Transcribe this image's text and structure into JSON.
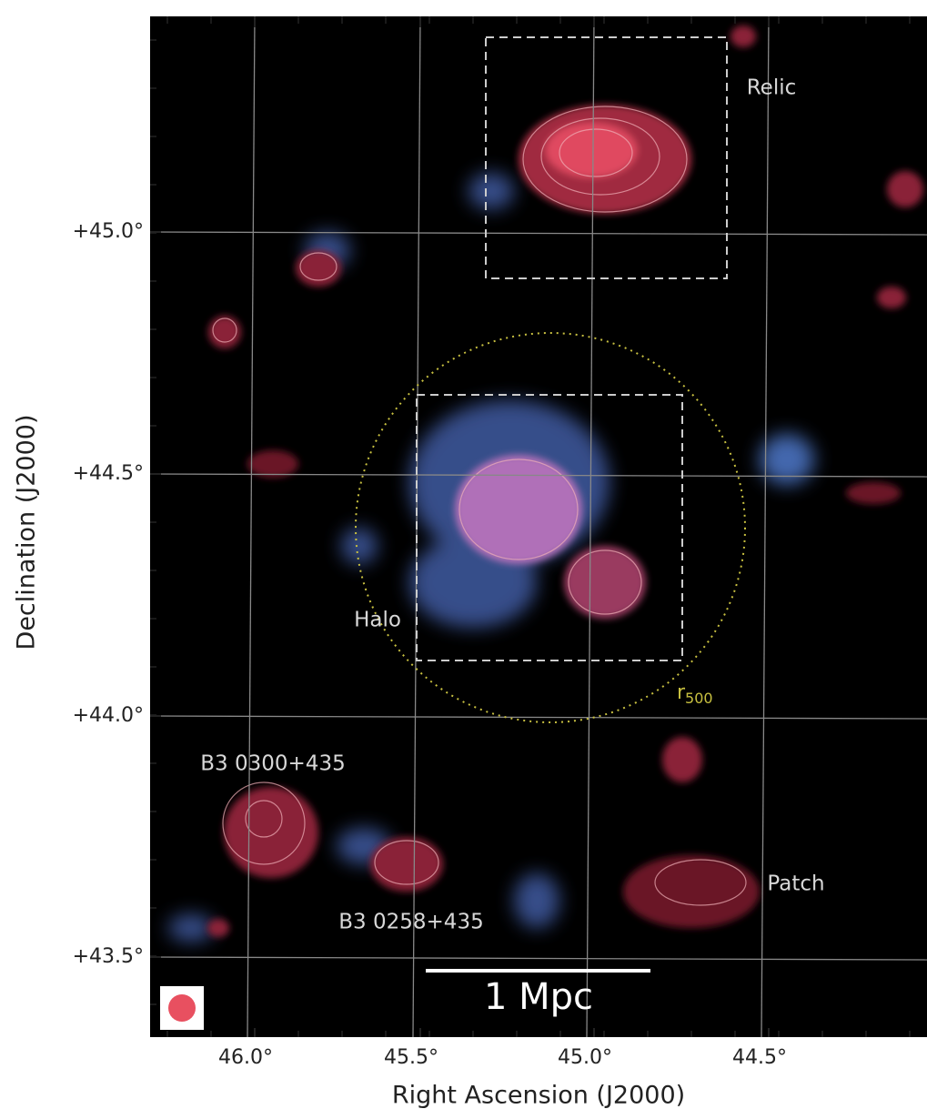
{
  "axes": {
    "x_label": "Right Ascension (J2000)",
    "y_label": "Declination (J2000)",
    "x_ticks": [
      "46.0°",
      "45.5°",
      "45.0°",
      "44.5°"
    ],
    "y_ticks": [
      "+45.0°",
      "+44.5°",
      "+44.0°",
      "+43.5°"
    ]
  },
  "annotations": {
    "relic": "Relic",
    "halo": "Halo",
    "r500": {
      "symbol": "r",
      "subscript": "500"
    },
    "source_1": "B3 0300+435",
    "source_2": "B3 0258+435",
    "patch": "Patch"
  },
  "scale_bar": "1 Mpc"
}
